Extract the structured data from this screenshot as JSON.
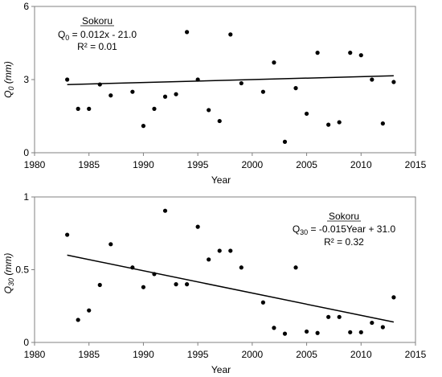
{
  "chart_data": [
    {
      "type": "scatter",
      "title": "",
      "xlabel": "Year",
      "ylabel": "Q0 (mm)",
      "ylabel_main": "Q",
      "ylabel_sub": "0",
      "ylabel_unit": " (mm)",
      "xlim": [
        1980,
        2015
      ],
      "ylim": [
        0,
        6
      ],
      "xticks": [
        1980,
        1985,
        1990,
        1995,
        2000,
        2005,
        2010,
        2015
      ],
      "yticks": [
        0,
        3,
        6
      ],
      "grid": false,
      "annotation": {
        "station": "Sokoru",
        "eq_main": "Q",
        "eq_sub": "0",
        "eq_rest": " = 0.012x - 21.0",
        "r2": "R² = 0.01"
      },
      "trendline": {
        "slope": 0.012,
        "intercept": -21.0
      },
      "series": [
        {
          "points": [
            [
              1983,
              3.0
            ],
            [
              1984,
              1.8
            ],
            [
              1985,
              1.8
            ],
            [
              1986,
              2.8
            ],
            [
              1987,
              2.35
            ],
            [
              1989,
              2.5
            ],
            [
              1990,
              1.1
            ],
            [
              1991,
              1.8
            ],
            [
              1992,
              2.3
            ],
            [
              1993,
              2.4
            ],
            [
              1994,
              4.95
            ],
            [
              1995,
              3.0
            ],
            [
              1996,
              1.75
            ],
            [
              1997,
              1.3
            ],
            [
              1998,
              4.85
            ],
            [
              1999,
              2.85
            ],
            [
              2001,
              2.5
            ],
            [
              2002,
              3.7
            ],
            [
              2003,
              0.45
            ],
            [
              2004,
              2.65
            ],
            [
              2005,
              1.6
            ],
            [
              2006,
              4.1
            ],
            [
              2007,
              1.15
            ],
            [
              2008,
              1.25
            ],
            [
              2009,
              4.1
            ],
            [
              2010,
              4.0
            ],
            [
              2011,
              3.0
            ],
            [
              2012,
              1.2
            ],
            [
              2013,
              2.9
            ]
          ]
        }
      ]
    },
    {
      "type": "scatter",
      "title": "",
      "xlabel": "Year",
      "ylabel": "Q30 (mm)",
      "ylabel_main": "Q",
      "ylabel_sub": "30",
      "ylabel_unit": " (mm)",
      "xlim": [
        1980,
        2015
      ],
      "ylim": [
        0,
        1
      ],
      "xticks": [
        1980,
        1985,
        1990,
        1995,
        2000,
        2005,
        2010,
        2015
      ],
      "yticks": [
        0,
        0.5,
        1
      ],
      "grid": false,
      "annotation": {
        "station": "Sokoru",
        "eq_main": "Q",
        "eq_sub": "30",
        "eq_rest": " = -0.015Year + 31.0",
        "r2": "R² = 0.32"
      },
      "trendline": {
        "start": [
          1983,
          0.6
        ],
        "end": [
          2013,
          0.14
        ]
      },
      "series": [
        {
          "points": [
            [
              1983,
              0.74
            ],
            [
              1984,
              0.155
            ],
            [
              1985,
              0.22
            ],
            [
              1986,
              0.395
            ],
            [
              1987,
              0.675
            ],
            [
              1989,
              0.515
            ],
            [
              1990,
              0.38
            ],
            [
              1991,
              0.47
            ],
            [
              1992,
              0.905
            ],
            [
              1993,
              0.4
            ],
            [
              1994,
              0.4
            ],
            [
              1995,
              0.795
            ],
            [
              1996,
              0.57
            ],
            [
              1997,
              0.63
            ],
            [
              1998,
              0.63
            ],
            [
              1999,
              0.515
            ],
            [
              2001,
              0.275
            ],
            [
              2002,
              0.1
            ],
            [
              2003,
              0.06
            ],
            [
              2004,
              0.515
            ],
            [
              2005,
              0.075
            ],
            [
              2006,
              0.065
            ],
            [
              2007,
              0.175
            ],
            [
              2008,
              0.175
            ],
            [
              2009,
              0.07
            ],
            [
              2010,
              0.07
            ],
            [
              2011,
              0.135
            ],
            [
              2012,
              0.105
            ],
            [
              2013,
              0.31
            ]
          ]
        }
      ]
    }
  ]
}
